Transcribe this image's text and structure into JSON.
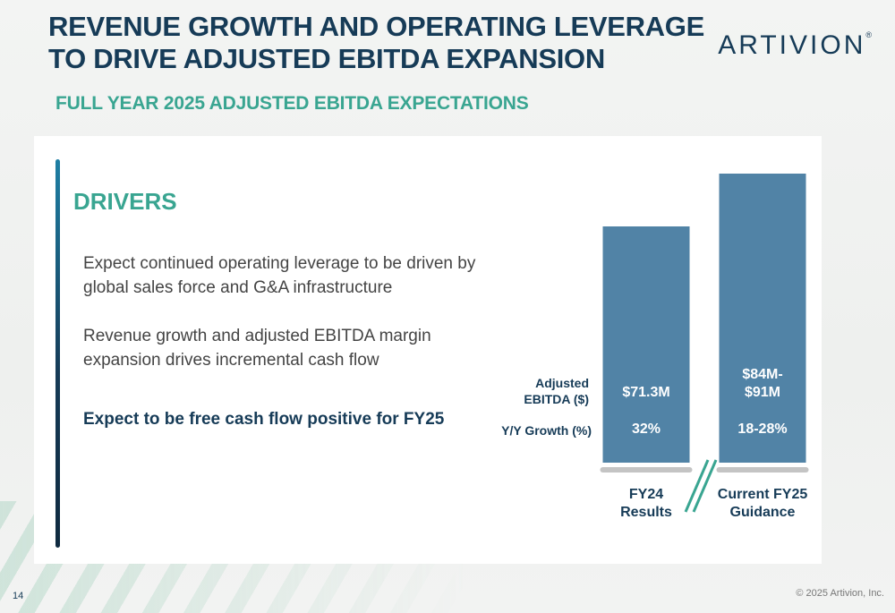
{
  "slide": {
    "title_line1": "REVENUE GROWTH AND OPERATING LEVERAGE",
    "title_line2": "TO DRIVE ADJUSTED EBITDA EXPANSION",
    "subtitle": "FULL YEAR 2025 ADJUSTED EBITDA EXPECTATIONS",
    "logo": "ARTIVION",
    "logo_mark": "®",
    "page_number": "14",
    "copyright": "© 2025 Artivion, Inc."
  },
  "drivers": {
    "heading": "DRIVERS",
    "bullets": [
      "Expect continued operating leverage to be driven by global sales force and G&A infrastructure",
      "Revenue growth and adjusted EBITDA margin expansion drives incremental cash flow",
      "Expect to be free cash flow positive for FY25"
    ]
  },
  "colors": {
    "navy": "#163b57",
    "teal": "#39a591",
    "bar": "#5183a6",
    "baseline": "#c4c4c4"
  },
  "chart_data": {
    "type": "bar",
    "categories": [
      [
        "FY24",
        "Results"
      ],
      [
        "Current FY25",
        "Guidance"
      ]
    ],
    "values": [
      71.3,
      87.5
    ],
    "value_ranges": [
      [
        71.3,
        71.3
      ],
      [
        84,
        91
      ]
    ],
    "value_labels": [
      [
        "$71.3M"
      ],
      [
        "$84M-",
        "$91M"
      ]
    ],
    "growth_labels": [
      "32%",
      "18-28%"
    ],
    "row_labels": {
      "ebitda": [
        "Adjusted",
        "EBITDA ($)"
      ],
      "growth": "Y/Y Growth (%)"
    },
    "axis_break": true,
    "grid": false
  }
}
